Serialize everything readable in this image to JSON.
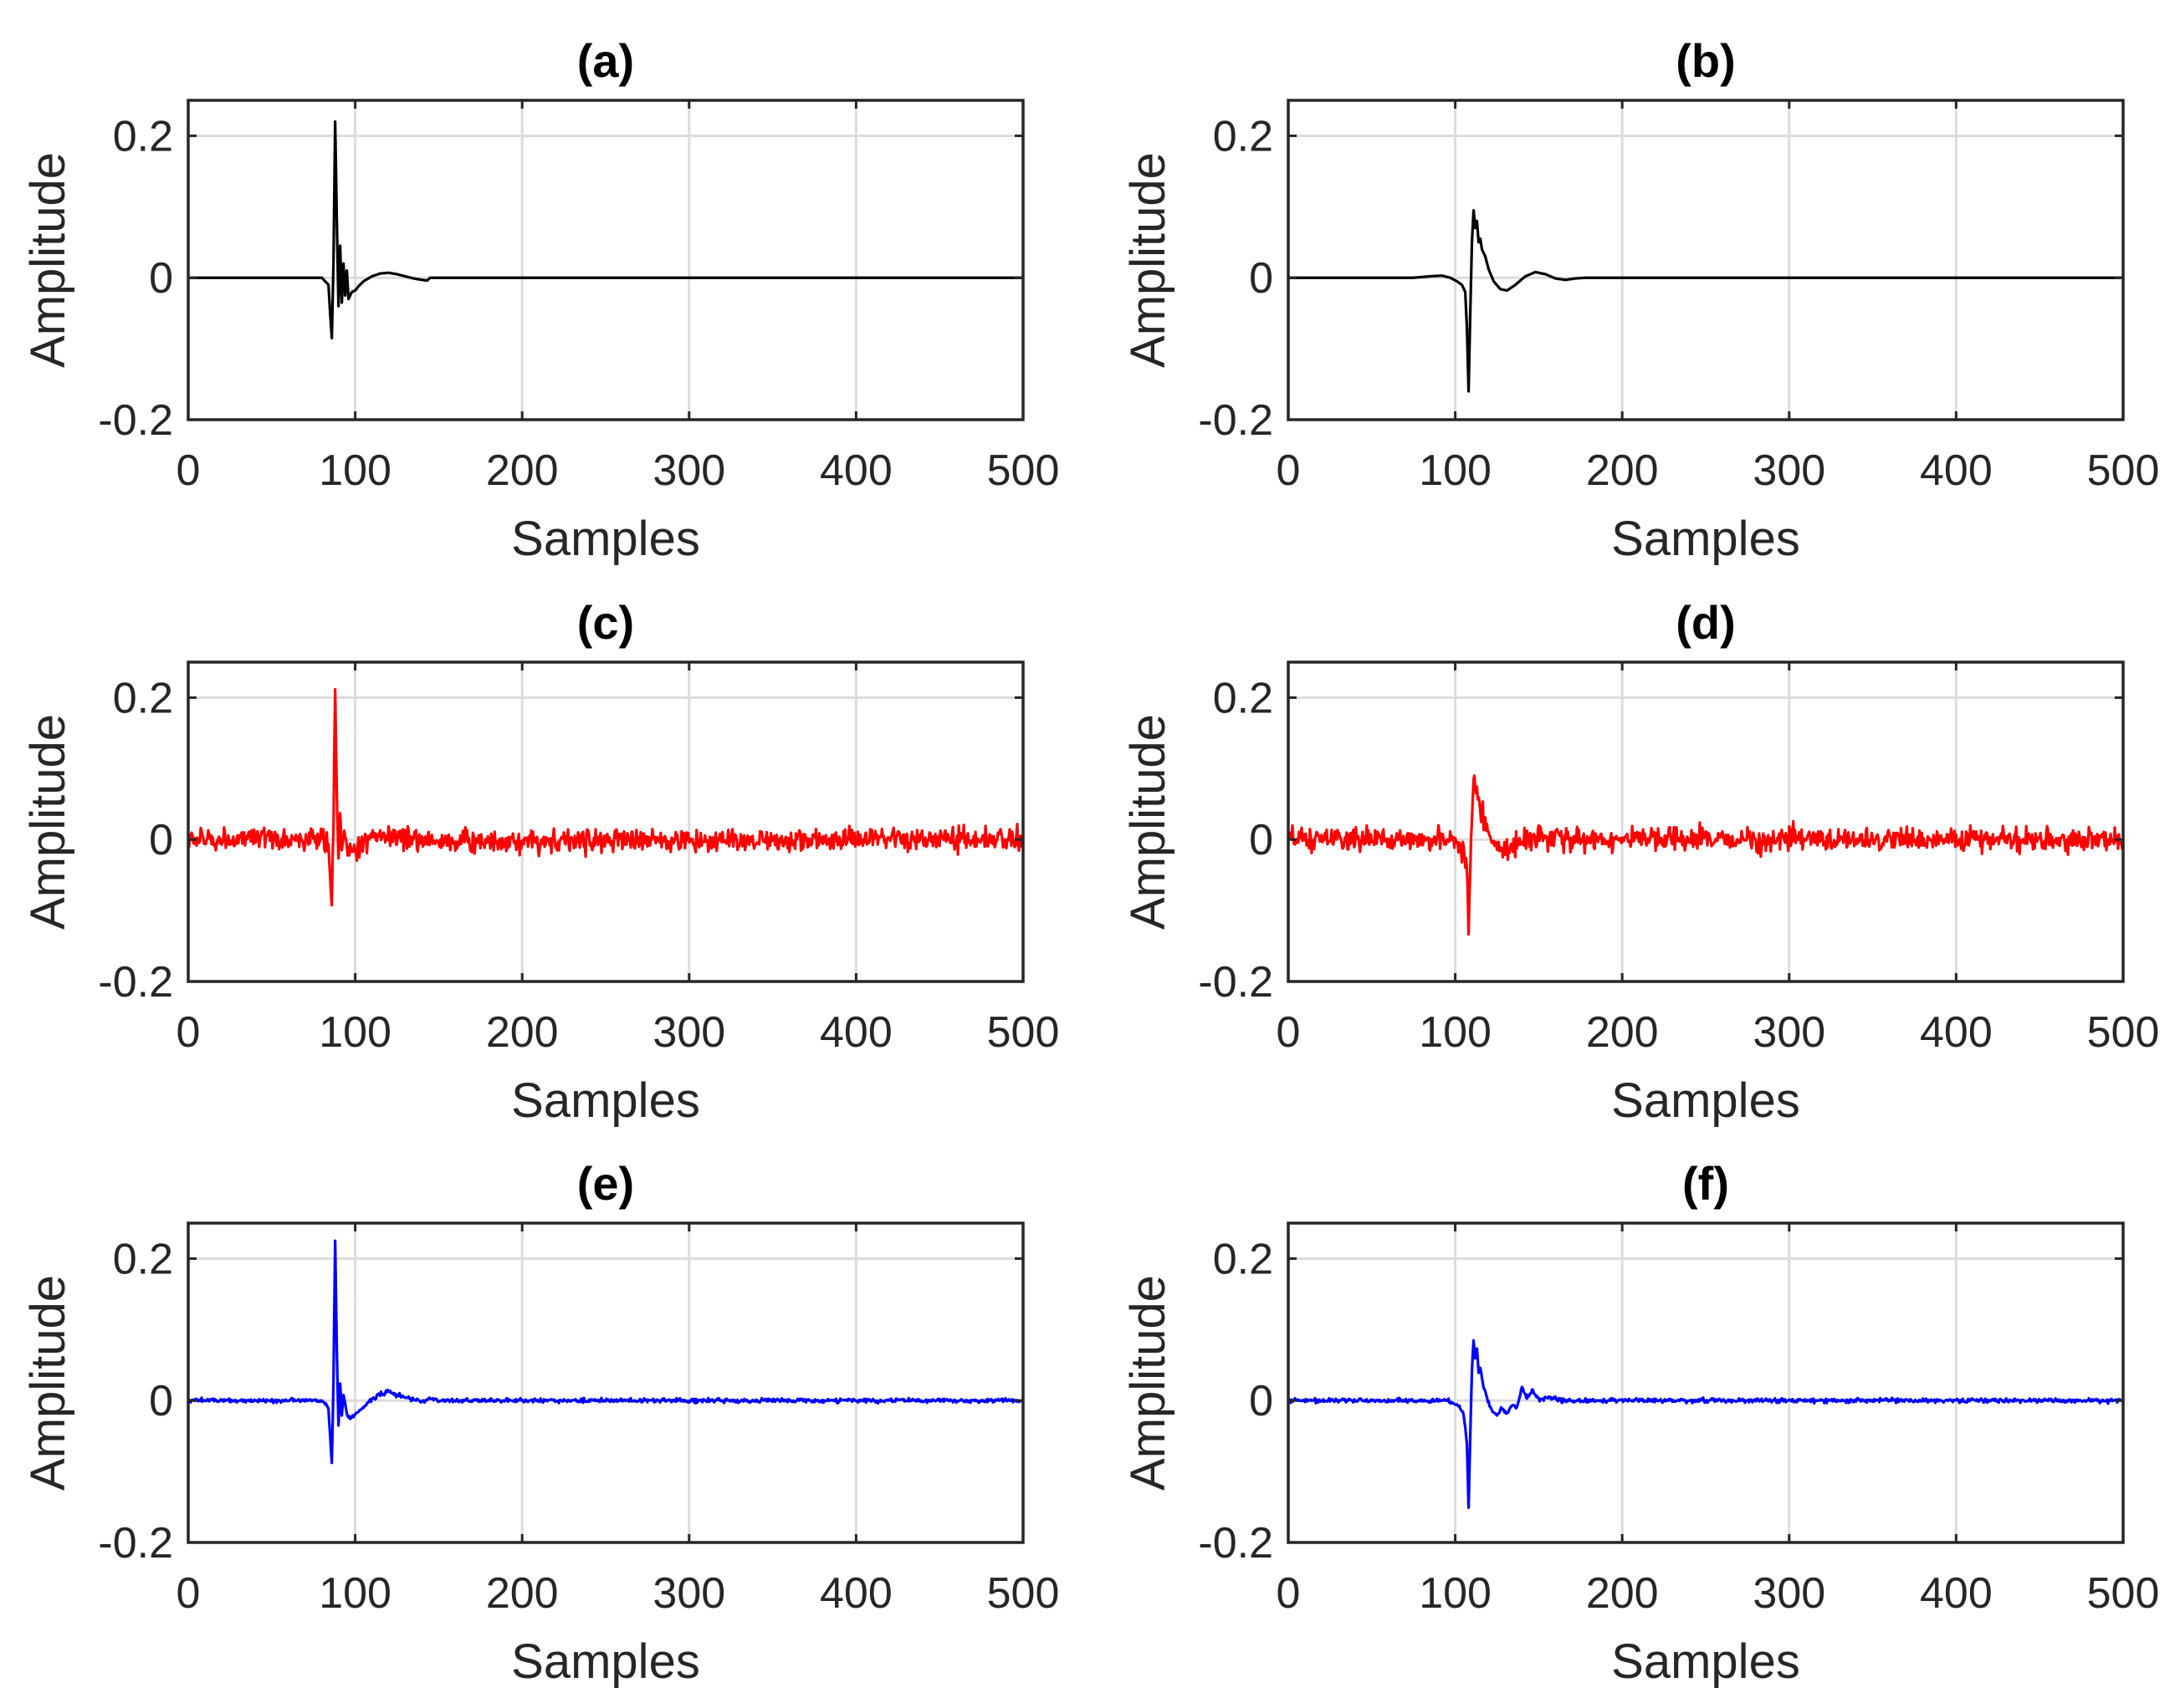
{
  "figure": {
    "layout": "3 rows x 2 columns",
    "shared_axes": {
      "xlabel": "Samples",
      "ylabel": "Amplitude",
      "xlim": [
        0,
        500
      ],
      "ylim": [
        -0.2,
        0.25
      ],
      "xticks": [
        0,
        100,
        200,
        300,
        400,
        500
      ],
      "xtick_labels": [
        "0",
        "100",
        "200",
        "300",
        "400",
        "500"
      ],
      "yticks": [
        -0.2,
        0,
        0.2
      ],
      "ytick_labels": [
        "-0.2",
        "0",
        "0.2"
      ],
      "grid": true
    }
  },
  "chart_data": [
    {
      "panel": "a",
      "title": "(a)",
      "type": "line",
      "color": "#000000",
      "xlabel": "Samples",
      "ylabel": "Amplitude",
      "xlim": [
        0,
        500
      ],
      "ylim": [
        -0.2,
        0.25
      ],
      "series": [
        {
          "name": "(a)",
          "x": [
            0,
            70,
            80,
            84,
            85,
            86,
            87,
            88,
            89,
            90,
            91,
            92,
            93,
            94,
            95,
            96,
            98,
            100,
            102,
            105,
            110,
            115,
            120,
            125,
            130,
            135,
            140,
            143,
            145,
            500
          ],
          "y": [
            0,
            0,
            0,
            -0.01,
            -0.05,
            -0.085,
            0.02,
            0.22,
            0.08,
            -0.04,
            0.045,
            -0.035,
            0.02,
            -0.025,
            0.01,
            -0.03,
            -0.02,
            -0.018,
            -0.012,
            -0.005,
            0.002,
            0.006,
            0.007,
            0.005,
            0.002,
            -0.001,
            -0.003,
            -0.004,
            0,
            0
          ]
        }
      ]
    },
    {
      "panel": "b",
      "title": "(b)",
      "type": "line",
      "color": "#000000",
      "xlabel": "Samples",
      "ylabel": "Amplitude",
      "xlim": [
        0,
        500
      ],
      "ylim": [
        -0.2,
        0.25
      ],
      "series": [
        {
          "name": "(b)",
          "x": [
            0,
            75,
            85,
            92,
            97,
            101,
            104,
            106,
            107,
            108,
            109,
            110,
            111,
            112,
            113,
            114,
            115,
            116,
            118,
            120,
            123,
            127,
            131,
            136,
            142,
            148,
            154,
            160,
            166,
            172,
            178,
            500
          ],
          "y": [
            0,
            0,
            0.002,
            0.003,
            0,
            -0.005,
            -0.01,
            -0.02,
            -0.07,
            -0.16,
            -0.05,
            0.05,
            0.095,
            0.07,
            0.08,
            0.05,
            0.055,
            0.04,
            0.03,
            0.012,
            -0.005,
            -0.016,
            -0.018,
            -0.01,
            0.002,
            0.008,
            0.005,
            -0.001,
            -0.003,
            -0.001,
            0,
            0
          ]
        }
      ]
    },
    {
      "panel": "c",
      "title": "(c)",
      "type": "line",
      "color": "#ff0000",
      "xlabel": "Samples",
      "ylabel": "Amplitude",
      "xlim": [
        0,
        500
      ],
      "ylim": [
        -0.2,
        0.25
      ],
      "series": [
        {
          "name": "(c)",
          "x": [
            0,
            80,
            84,
            85,
            86,
            87,
            88,
            89,
            90,
            91,
            92,
            93,
            95,
            98,
            100,
            105,
            110,
            115,
            120,
            130,
            140,
            150,
            500
          ],
          "y": [
            0,
            0,
            -0.01,
            -0.05,
            -0.09,
            0.03,
            0.225,
            0.08,
            -0.04,
            0.03,
            -0.02,
            0.015,
            -0.015,
            -0.02,
            -0.015,
            -0.005,
            0.005,
            0.008,
            0.006,
            0.002,
            0,
            -0.002,
            0
          ],
          "noise_std": 0.008
        }
      ]
    },
    {
      "panel": "d",
      "title": "(d)",
      "type": "line",
      "color": "#ff0000",
      "xlabel": "Samples",
      "ylabel": "Amplitude",
      "xlim": [
        0,
        500
      ],
      "ylim": [
        -0.2,
        0.25
      ],
      "series": [
        {
          "name": "(d)",
          "x": [
            0,
            95,
            102,
            105,
            107,
            108,
            109,
            110,
            111,
            112,
            113,
            114,
            115,
            117,
            120,
            124,
            128,
            133,
            140,
            148,
            156,
            165,
            500
          ],
          "y": [
            0,
            0,
            -0.005,
            -0.015,
            -0.05,
            -0.13,
            -0.04,
            0.04,
            0.09,
            0.06,
            0.07,
            0.05,
            0.045,
            0.03,
            0.01,
            -0.008,
            -0.015,
            -0.012,
            0,
            0.006,
            0.003,
            0,
            0
          ],
          "noise_std": 0.008
        }
      ]
    },
    {
      "panel": "e",
      "title": "(e)",
      "type": "line",
      "color": "#0000ff",
      "xlabel": "Samples",
      "ylabel": "Amplitude",
      "xlim": [
        0,
        500
      ],
      "ylim": [
        -0.2,
        0.25
      ],
      "series": [
        {
          "name": "(e)",
          "x": [
            0,
            80,
            84,
            85,
            86,
            87,
            88,
            89,
            90,
            91,
            92,
            93,
            95,
            98,
            100,
            104,
            108,
            112,
            116,
            120,
            125,
            130,
            135,
            140,
            145,
            150,
            155,
            500
          ],
          "y": [
            0,
            0,
            -0.01,
            -0.05,
            -0.09,
            0.03,
            0.225,
            0.07,
            -0.035,
            0.025,
            -0.02,
            0.01,
            -0.02,
            -0.025,
            -0.02,
            -0.012,
            -0.003,
            0.006,
            0.01,
            0.012,
            0.008,
            0.004,
            0.002,
            -0.002,
            0.003,
            0,
            0,
            0
          ],
          "noise_std": 0.0015
        }
      ]
    },
    {
      "panel": "f",
      "title": "(f)",
      "type": "line",
      "color": "#0000ff",
      "xlabel": "Samples",
      "ylabel": "Amplitude",
      "xlim": [
        0,
        500
      ],
      "ylim": [
        -0.2,
        0.25
      ],
      "series": [
        {
          "name": "(f)",
          "x": [
            0,
            95,
            100,
            103,
            105,
            107,
            108,
            109,
            110,
            111,
            112,
            113,
            114,
            115,
            117,
            119,
            122,
            125,
            128,
            131,
            134,
            137,
            140,
            143,
            146,
            150,
            156,
            165,
            500
          ],
          "y": [
            0,
            0,
            -0.005,
            -0.01,
            -0.02,
            -0.06,
            -0.15,
            -0.05,
            0.04,
            0.085,
            0.06,
            0.075,
            0.04,
            0.045,
            0.02,
            0.005,
            -0.015,
            -0.02,
            -0.01,
            -0.02,
            -0.005,
            -0.012,
            0.02,
            0.005,
            0.015,
            0.002,
            0.004,
            0,
            0
          ],
          "noise_std": 0.0015
        }
      ]
    }
  ]
}
